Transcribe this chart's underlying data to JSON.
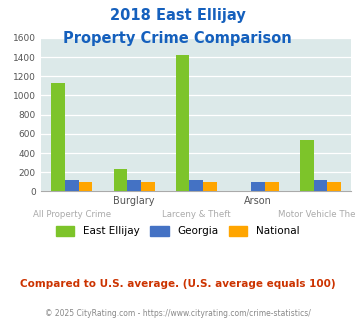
{
  "title_line1": "2018 East Ellijay",
  "title_line2": "Property Crime Comparison",
  "title_color": "#1560bd",
  "east_ellijay": [
    1130,
    230,
    1420,
    0,
    540
  ],
  "georgia": [
    115,
    120,
    115,
    100,
    115
  ],
  "national": [
    100,
    100,
    100,
    100,
    100
  ],
  "colors": {
    "east_ellijay": "#7dc42a",
    "georgia": "#4472c4",
    "national": "#ffa500"
  },
  "ylim": [
    0,
    1600
  ],
  "yticks": [
    0,
    200,
    400,
    600,
    800,
    1000,
    1200,
    1400,
    1600
  ],
  "plot_bg": "#dce9e9",
  "top_labels": [
    [
      1,
      "Burglary"
    ],
    [
      3,
      "Arson"
    ]
  ],
  "bottom_labels": [
    [
      0,
      "All Property Crime"
    ],
    [
      2,
      "Larceny & Theft"
    ],
    [
      4,
      "Motor Vehicle Theft"
    ]
  ],
  "legend_labels": [
    "East Ellijay",
    "Georgia",
    "National"
  ],
  "footnote1": "Compared to U.S. average. (U.S. average equals 100)",
  "footnote2": "© 2025 CityRating.com - https://www.cityrating.com/crime-statistics/",
  "footnote1_color": "#cc3300",
  "footnote2_color": "#888888"
}
